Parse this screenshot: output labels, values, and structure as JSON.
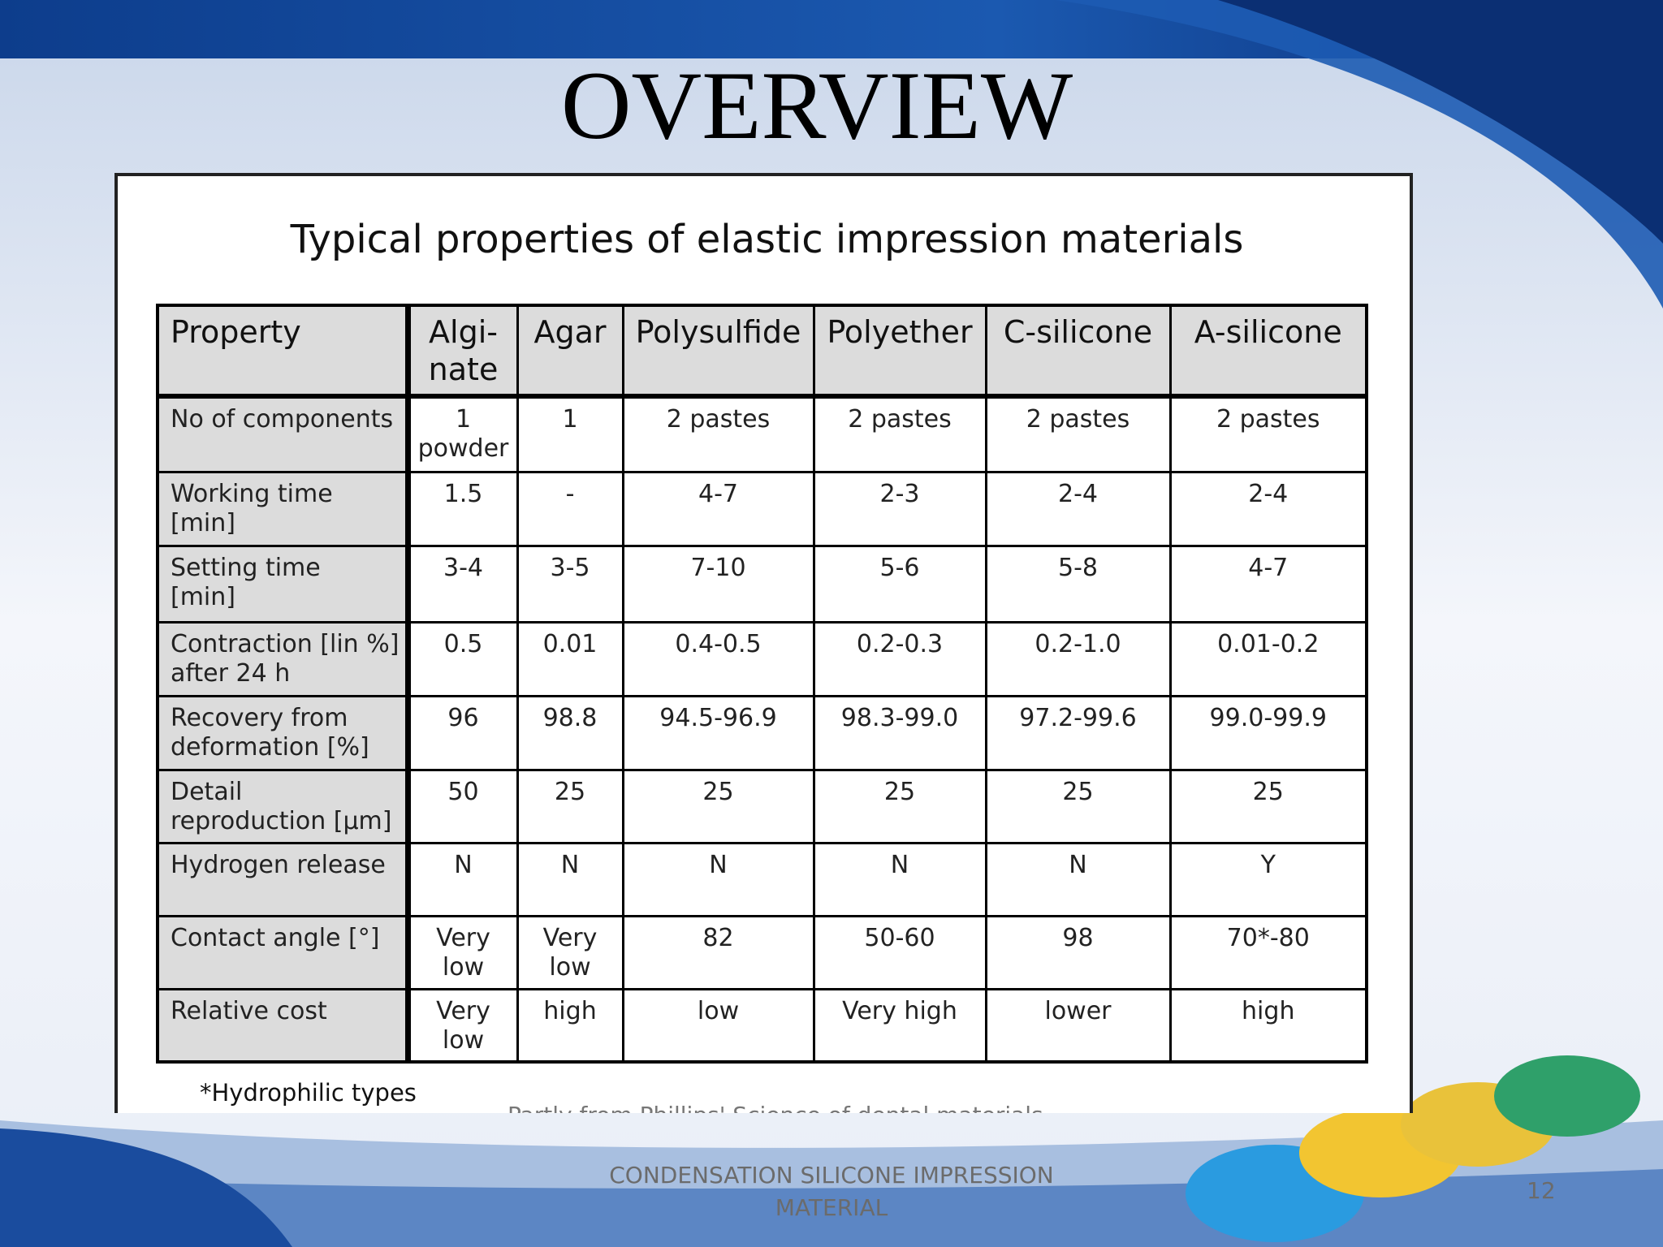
{
  "slide": {
    "title": "OVERVIEW",
    "table_title": "Typical properties of elastic impression materials",
    "table": {
      "header": [
        "Property",
        "Algi-\nnate",
        "Agar",
        "Polysulfide",
        "Polyether",
        "C-silicone",
        "A-silicone"
      ],
      "rows": [
        [
          "No of components",
          "1\npowder",
          "1",
          "2 pastes",
          "2 pastes",
          "2 pastes",
          "2 pastes"
        ],
        [
          "Working time\n[min]",
          "1.5",
          "-",
          "4-7",
          "2-3",
          "2-4",
          "2-4"
        ],
        [
          "Setting time\n[min]",
          "3-4",
          "3-5",
          "7-10",
          "5-6",
          "5-8",
          "4-7"
        ],
        [
          "Contraction [lin %]\nafter 24 h",
          "0.5",
          "0.01",
          "0.4-0.5",
          "0.2-0.3",
          "0.2-1.0",
          "0.01-0.2"
        ],
        [
          "Recovery from\ndeformation [%]",
          "96",
          "98.8",
          "94.5-96.9",
          "98.3-99.0",
          "97.2-99.6",
          "99.0-99.9"
        ],
        [
          "Detail\nreproduction [µm]",
          "50",
          "25",
          "25",
          "25",
          "25",
          "25"
        ],
        [
          "Hydrogen release",
          "N",
          "N",
          "N",
          "N",
          "N",
          "Y"
        ],
        [
          "Contact angle [°]",
          "Very\nlow",
          "Very\nlow",
          "82",
          "50-60",
          "98",
          "70*-80"
        ],
        [
          "Relative cost",
          "Very\nlow",
          "high",
          "low",
          "Very high",
          "lower",
          "high"
        ]
      ]
    },
    "footnote": "*Hydrophilic types",
    "source": "Partly from Phillips' Science of dental materials",
    "footer": "CONDENSATION SILICONE IMPRESSION\nMATERIAL",
    "page_number": "12"
  }
}
